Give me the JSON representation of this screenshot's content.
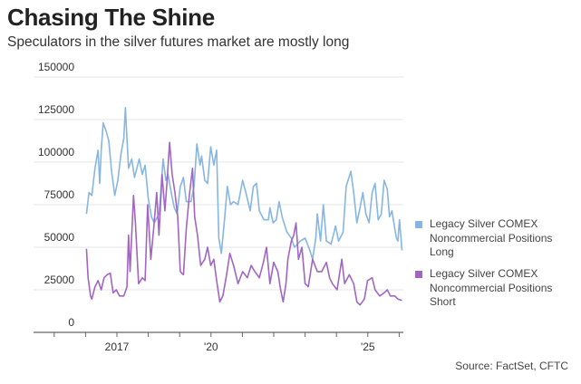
{
  "title": "Chasing The Shine",
  "subtitle": "Speculators in the silver futures market are mostly long",
  "source": "Source: FactSet, CFTC",
  "chart_data": {
    "type": "line",
    "title": "Chasing The Shine",
    "subtitle": "Speculators in the silver futures market are mostly long",
    "xlabel": "",
    "ylabel": "",
    "ylim": [
      0,
      150000
    ],
    "xlim": [
      2013.8,
      2026.2
    ],
    "yticks": [
      0,
      25000,
      50000,
      75000,
      100000,
      125000,
      150000
    ],
    "ytick_labels": [
      "0",
      "25000",
      "50000",
      "75000",
      "100000",
      "125000",
      "150000"
    ],
    "xticks": [
      2014,
      2015,
      2016,
      2017,
      2018,
      2019,
      2020,
      2021,
      2022,
      2023,
      2024,
      2025,
      2026
    ],
    "xtick_labels": [
      {
        "x": 2017,
        "label": "2017"
      },
      {
        "x": 2020,
        "label": "'20"
      },
      {
        "x": 2025,
        "label": "'25"
      }
    ],
    "grid": "horizontal",
    "legend": "right",
    "colors": {
      "long": "#86b6e2",
      "short": "#a066c2"
    },
    "series": [
      {
        "name": "Legacy Silver COMEX Noncommercial Positions Long",
        "color": "#86b6e2",
        "points": [
          [
            2016.03,
            69600
          ],
          [
            2016.11,
            82200
          ],
          [
            2016.2,
            80400
          ],
          [
            2016.3,
            96400
          ],
          [
            2016.4,
            107000
          ],
          [
            2016.45,
            87500
          ],
          [
            2016.5,
            107000
          ],
          [
            2016.56,
            123000
          ],
          [
            2016.66,
            118000
          ],
          [
            2016.74,
            112500
          ],
          [
            2016.83,
            94600
          ],
          [
            2016.93,
            80400
          ],
          [
            2017.03,
            89300
          ],
          [
            2017.13,
            105000
          ],
          [
            2017.22,
            114000
          ],
          [
            2017.27,
            132000
          ],
          [
            2017.37,
            96400
          ],
          [
            2017.47,
            101800
          ],
          [
            2017.56,
            91000
          ],
          [
            2017.71,
            101800
          ],
          [
            2017.81,
            92800
          ],
          [
            2017.9,
            98200
          ],
          [
            2018.0,
            78500
          ],
          [
            2018.1,
            67800
          ],
          [
            2018.19,
            64300
          ],
          [
            2018.34,
            69600
          ],
          [
            2018.39,
            80400
          ],
          [
            2018.47,
            101800
          ],
          [
            2018.56,
            89300
          ],
          [
            2018.63,
            92800
          ],
          [
            2018.73,
            82200
          ],
          [
            2018.83,
            73200
          ],
          [
            2018.92,
            69600
          ],
          [
            2019.02,
            85700
          ],
          [
            2019.12,
            91000
          ],
          [
            2019.21,
            76800
          ],
          [
            2019.36,
            76800
          ],
          [
            2019.46,
            85700
          ],
          [
            2019.55,
            110700
          ],
          [
            2019.65,
            98200
          ],
          [
            2019.7,
            103600
          ],
          [
            2019.8,
            89300
          ],
          [
            2019.89,
            87500
          ],
          [
            2019.99,
            109000
          ],
          [
            2020.09,
            98200
          ],
          [
            2020.18,
            107000
          ],
          [
            2020.25,
            55400
          ],
          [
            2020.33,
            46400
          ],
          [
            2020.43,
            66100
          ],
          [
            2020.52,
            85700
          ],
          [
            2020.62,
            75000
          ],
          [
            2020.72,
            76800
          ],
          [
            2020.86,
            75000
          ],
          [
            2021.01,
            89300
          ],
          [
            2021.11,
            82200
          ],
          [
            2021.25,
            71400
          ],
          [
            2021.35,
            85700
          ],
          [
            2021.45,
            87500
          ],
          [
            2021.54,
            71400
          ],
          [
            2021.69,
            66100
          ],
          [
            2021.83,
            66100
          ],
          [
            2021.88,
            73200
          ],
          [
            2021.98,
            64300
          ],
          [
            2022.08,
            66100
          ],
          [
            2022.17,
            76800
          ],
          [
            2022.27,
            67800
          ],
          [
            2022.42,
            58900
          ],
          [
            2022.56,
            55400
          ],
          [
            2022.66,
            50000
          ],
          [
            2022.85,
            53600
          ],
          [
            2023.0,
            55400
          ],
          [
            2023.15,
            48200
          ],
          [
            2023.24,
            42900
          ],
          [
            2023.34,
            55400
          ],
          [
            2023.39,
            69600
          ],
          [
            2023.49,
            53600
          ],
          [
            2023.58,
            75000
          ],
          [
            2023.68,
            53600
          ],
          [
            2023.83,
            51800
          ],
          [
            2023.97,
            62500
          ],
          [
            2024.07,
            53600
          ],
          [
            2024.21,
            58900
          ],
          [
            2024.31,
            85700
          ],
          [
            2024.46,
            94600
          ],
          [
            2024.55,
            82200
          ],
          [
            2024.65,
            64300
          ],
          [
            2024.75,
            73200
          ],
          [
            2024.84,
            82200
          ],
          [
            2024.94,
            69600
          ],
          [
            2025.04,
            64300
          ],
          [
            2025.14,
            82200
          ],
          [
            2025.23,
            87500
          ],
          [
            2025.33,
            66100
          ],
          [
            2025.43,
            69600
          ],
          [
            2025.52,
            89300
          ],
          [
            2025.62,
            84000
          ],
          [
            2025.69,
            67800
          ],
          [
            2025.77,
            71400
          ],
          [
            2025.91,
            55400
          ],
          [
            2025.96,
            53600
          ],
          [
            2026.01,
            66100
          ],
          [
            2026.09,
            48200
          ]
        ]
      },
      {
        "name": "Legacy Silver COMEX Noncommercial Positions Short",
        "color": "#a066c2",
        "points": [
          [
            2016.03,
            49100
          ],
          [
            2016.08,
            32100
          ],
          [
            2016.16,
            21400
          ],
          [
            2016.2,
            19600
          ],
          [
            2016.3,
            26800
          ],
          [
            2016.4,
            30400
          ],
          [
            2016.5,
            25000
          ],
          [
            2016.59,
            32100
          ],
          [
            2016.69,
            33900
          ],
          [
            2016.79,
            34800
          ],
          [
            2016.88,
            23200
          ],
          [
            2016.98,
            25000
          ],
          [
            2017.08,
            21400
          ],
          [
            2017.22,
            21400
          ],
          [
            2017.32,
            26800
          ],
          [
            2017.37,
            57100
          ],
          [
            2017.42,
            35700
          ],
          [
            2017.53,
            80400
          ],
          [
            2017.59,
            64300
          ],
          [
            2017.69,
            28600
          ],
          [
            2017.81,
            32100
          ],
          [
            2017.9,
            30400
          ],
          [
            2017.98,
            75000
          ],
          [
            2018.08,
            42900
          ],
          [
            2018.17,
            60700
          ],
          [
            2018.27,
            82200
          ],
          [
            2018.34,
            57100
          ],
          [
            2018.44,
            92800
          ],
          [
            2018.53,
            71400
          ],
          [
            2018.6,
            89300
          ],
          [
            2018.68,
            111600
          ],
          [
            2018.76,
            92800
          ],
          [
            2018.85,
            82200
          ],
          [
            2018.94,
            67800
          ],
          [
            2019.02,
            35700
          ],
          [
            2019.12,
            33900
          ],
          [
            2019.21,
            60700
          ],
          [
            2019.31,
            80400
          ],
          [
            2019.41,
            96400
          ],
          [
            2019.48,
            67800
          ],
          [
            2019.57,
            57100
          ],
          [
            2019.67,
            39300
          ],
          [
            2019.8,
            42900
          ],
          [
            2019.89,
            50000
          ],
          [
            2019.99,
            39300
          ],
          [
            2020.09,
            42900
          ],
          [
            2020.18,
            30400
          ],
          [
            2020.28,
            17900
          ],
          [
            2020.38,
            21400
          ],
          [
            2020.48,
            32100
          ],
          [
            2020.6,
            46400
          ],
          [
            2020.72,
            39300
          ],
          [
            2020.86,
            28600
          ],
          [
            2021.01,
            35700
          ],
          [
            2021.16,
            32100
          ],
          [
            2021.28,
            39300
          ],
          [
            2021.4,
            35700
          ],
          [
            2021.54,
            32100
          ],
          [
            2021.67,
            41100
          ],
          [
            2021.77,
            50000
          ],
          [
            2021.88,
            28600
          ],
          [
            2022.0,
            41100
          ],
          [
            2022.13,
            35700
          ],
          [
            2022.22,
            25000
          ],
          [
            2022.3,
            17900
          ],
          [
            2022.39,
            28600
          ],
          [
            2022.45,
            42900
          ],
          [
            2022.56,
            53600
          ],
          [
            2022.64,
            57100
          ],
          [
            2022.71,
            64300
          ],
          [
            2022.79,
            42900
          ],
          [
            2022.9,
            50000
          ],
          [
            2023.0,
            28600
          ],
          [
            2023.1,
            26800
          ],
          [
            2023.24,
            42900
          ],
          [
            2023.39,
            35700
          ],
          [
            2023.53,
            35700
          ],
          [
            2023.68,
            41100
          ],
          [
            2023.78,
            32100
          ],
          [
            2023.87,
            28600
          ],
          [
            2024.02,
            25000
          ],
          [
            2024.17,
            42900
          ],
          [
            2024.26,
            28600
          ],
          [
            2024.41,
            33900
          ],
          [
            2024.55,
            28600
          ],
          [
            2024.65,
            17900
          ],
          [
            2024.75,
            16100
          ],
          [
            2024.89,
            19600
          ],
          [
            2024.99,
            30400
          ],
          [
            2025.14,
            32100
          ],
          [
            2025.23,
            25000
          ],
          [
            2025.38,
            21400
          ],
          [
            2025.52,
            23200
          ],
          [
            2025.62,
            25000
          ],
          [
            2025.72,
            21400
          ],
          [
            2025.86,
            21400
          ],
          [
            2025.96,
            19600
          ],
          [
            2026.09,
            18800
          ]
        ]
      }
    ]
  },
  "legend": [
    {
      "label": "Legacy Silver COMEX Noncommercial Positions Long",
      "color": "#86b6e2"
    },
    {
      "label": "Legacy Silver COMEX Noncommercial Positions Short",
      "color": "#a066c2"
    }
  ]
}
